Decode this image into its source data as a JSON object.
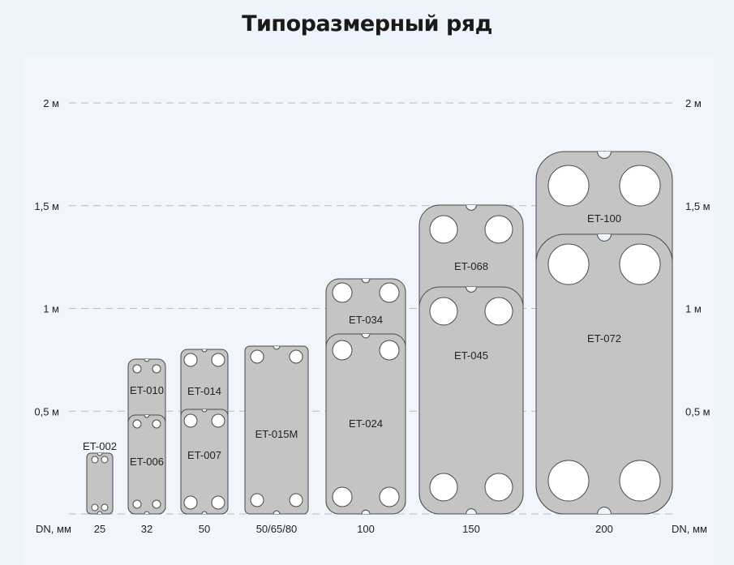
{
  "title": "Типоразмерный ряд",
  "y_axis": {
    "unit_suffix": " м",
    "ticks": [
      {
        "value": 2,
        "label": "2 м"
      },
      {
        "value": 1.5,
        "label": "1,5 м"
      },
      {
        "value": 1,
        "label": "1 м"
      },
      {
        "value": 0.5,
        "label": "0,5 м"
      }
    ],
    "range_m": [
      0,
      2
    ]
  },
  "x_axis": {
    "label": "DN, мм",
    "categories": [
      "25",
      "32",
      "50",
      "50/65/80",
      "100",
      "150",
      "200"
    ]
  },
  "plates": [
    {
      "name": "ET-002",
      "dn": "25"
    },
    {
      "name": "ET-010",
      "dn": "32"
    },
    {
      "name": "ET-006",
      "dn": "32"
    },
    {
      "name": "ET-014",
      "dn": "50"
    },
    {
      "name": "ET-007",
      "dn": "50"
    },
    {
      "name": "ET-015M",
      "dn": "50/65/80"
    },
    {
      "name": "ET-034",
      "dn": "100"
    },
    {
      "name": "ET-024",
      "dn": "100"
    },
    {
      "name": "ET-068",
      "dn": "150"
    },
    {
      "name": "ET-045",
      "dn": "150"
    },
    {
      "name": "ET-100",
      "dn": "200"
    },
    {
      "name": "ET-072",
      "dn": "200"
    }
  ],
  "colors": {
    "plate": "#c4c4c4",
    "outline": "#4a4a4a",
    "grid": "#b8bcc2",
    "background": "#eef4fb"
  }
}
